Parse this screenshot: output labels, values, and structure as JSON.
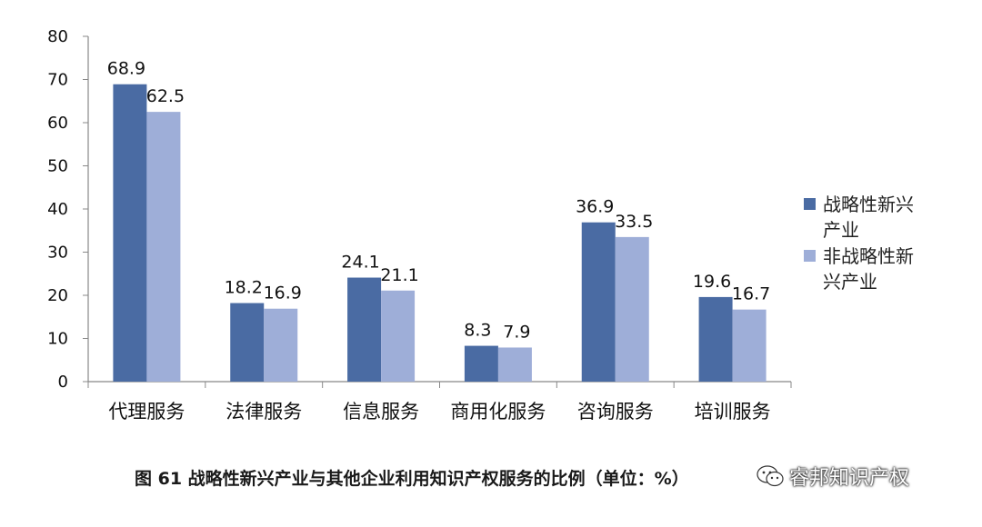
{
  "chart_data": {
    "type": "bar",
    "categories": [
      "代理服务",
      "法律服务",
      "信息服务",
      "商用化服务",
      "咨询服务",
      "培训服务"
    ],
    "series": [
      {
        "name": "战略性新兴产业",
        "values": [
          68.9,
          18.2,
          24.1,
          8.3,
          36.9,
          19.6
        ],
        "color": "#4a6ba3"
      },
      {
        "name": "非战略性新兴产业",
        "values": [
          62.5,
          16.9,
          21.1,
          7.9,
          33.5,
          16.7
        ],
        "color": "#9eaed8"
      }
    ],
    "data_labels": [
      [
        "68.9",
        "18.2",
        "24.1",
        "8.3",
        "36.9",
        "19.6"
      ],
      [
        "62.5",
        "16.9",
        "21.1",
        "7.9",
        "33.5",
        "16.7"
      ]
    ],
    "yticks": [
      "0",
      "10",
      "20",
      "30",
      "40",
      "50",
      "60",
      "70",
      "80"
    ],
    "ylim": [
      0,
      80
    ],
    "legend": {
      "placement": "right",
      "entries": [
        {
          "lines": [
            "战略性新兴",
            "产业"
          ],
          "color": "#4a6ba3"
        },
        {
          "lines": [
            "非战略性新",
            "兴产业"
          ],
          "color": "#9eaed8"
        }
      ]
    },
    "grid": false,
    "title": "图 61  战略性新兴产业与其他企业利用知识产权服务的比例（单位：%）"
  },
  "caption": "图 61  战略性新兴产业与其他企业利用知识产权服务的比例（单位：%）",
  "watermark": {
    "text": "睿邦知识产权",
    "icon": "wechat-icon"
  }
}
